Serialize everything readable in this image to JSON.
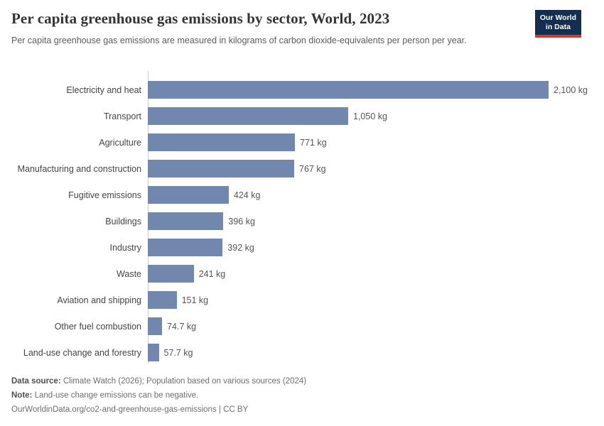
{
  "header": {
    "title": "Per capita greenhouse gas emissions by sector, World, 2023",
    "subtitle": "Per capita greenhouse gas emissions are measured in kilograms of carbon dioxide-equivalents per person per year."
  },
  "logo": {
    "line1": "Our World",
    "line2": "in Data",
    "background_color": "#142e4f",
    "accent_color": "#d0392f"
  },
  "chart_data": {
    "type": "bar",
    "orientation": "horizontal",
    "title": "Per capita greenhouse gas emissions by sector, World, 2023",
    "categories": [
      "Electricity and heat",
      "Transport",
      "Agriculture",
      "Manufacturing and construction",
      "Fugitive emissions",
      "Buildings",
      "Industry",
      "Waste",
      "Aviation and shipping",
      "Other fuel combustion",
      "Land-use change and forestry"
    ],
    "values": [
      2100,
      1050,
      771,
      767,
      424,
      396,
      392,
      241,
      151,
      74.7,
      57.7
    ],
    "value_labels": [
      "2,100 kg",
      "1,050 kg",
      "771 kg",
      "767 kg",
      "424 kg",
      "396 kg",
      "392 kg",
      "241 kg",
      "151 kg",
      "74.7 kg",
      "57.7 kg"
    ],
    "unit": "kg",
    "xlim": [
      0,
      2100
    ],
    "bar_color": "#7187ad",
    "grid": false,
    "legend": "none"
  },
  "footer": {
    "datasource_label": "Data source:",
    "datasource_text": " Climate Watch (2026); Population based on various sources (2024)",
    "note_label": "Note:",
    "note_text": " Land-use change emissions can be negative.",
    "url_line": "OurWorldinData.org/co2-and-greenhouse-gas-emissions | CC BY"
  }
}
